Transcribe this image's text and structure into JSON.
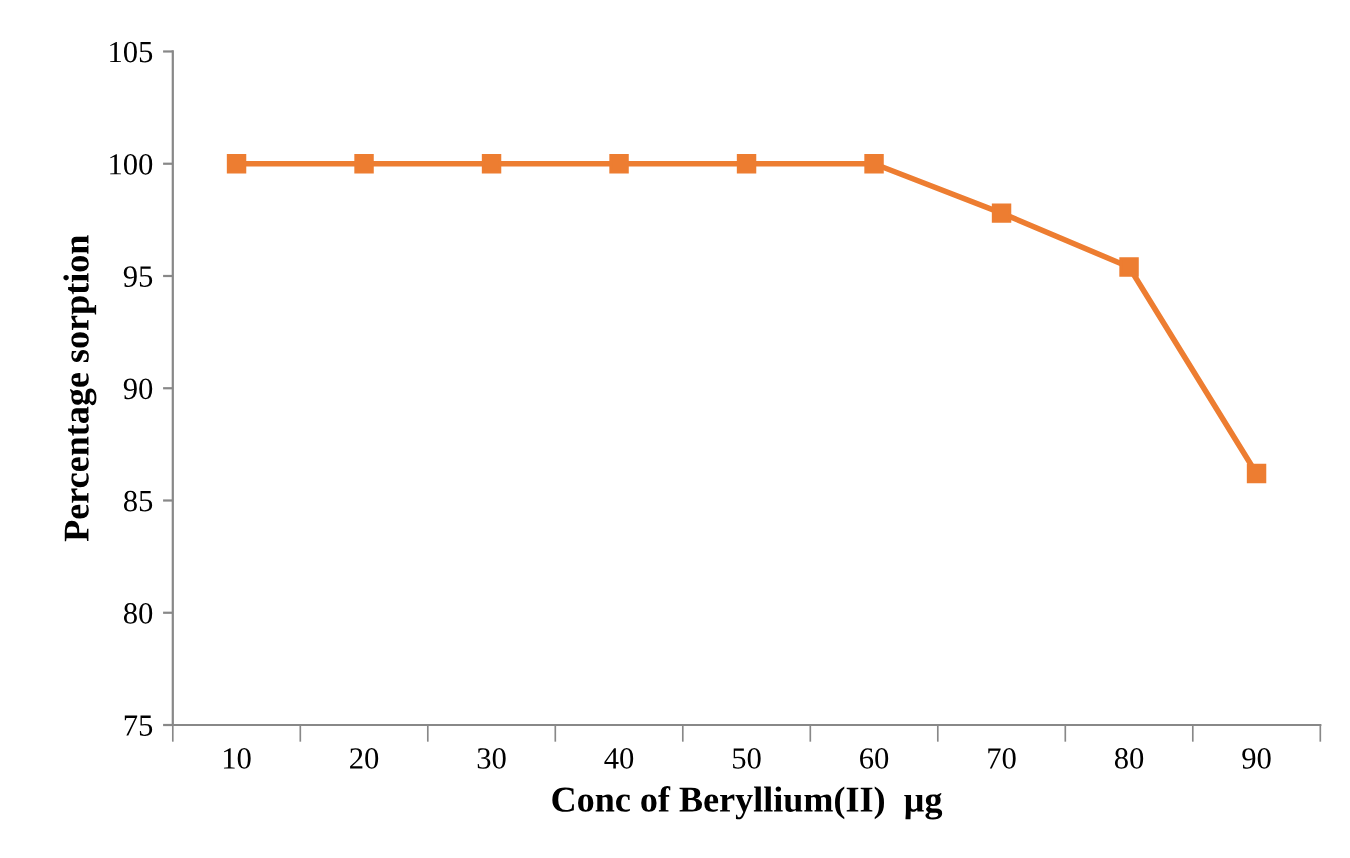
{
  "chart_data": {
    "type": "line",
    "xlabel": "Conc of Beryllium(II)  µg",
    "ylabel": "Percentage sorption",
    "categories": [
      "10",
      "20",
      "30",
      "40",
      "50",
      "60",
      "70",
      "80",
      "90"
    ],
    "series": [
      {
        "color": "#ed7d31",
        "values": [
          100,
          100,
          100,
          100,
          100,
          100,
          97.8,
          95.4,
          86.2
        ]
      }
    ],
    "ylim": [
      75,
      105
    ],
    "yticks": [
      75,
      80,
      85,
      90,
      95,
      100,
      105
    ],
    "grid": false,
    "legend": false,
    "marker": "square",
    "line_style": "solid"
  }
}
